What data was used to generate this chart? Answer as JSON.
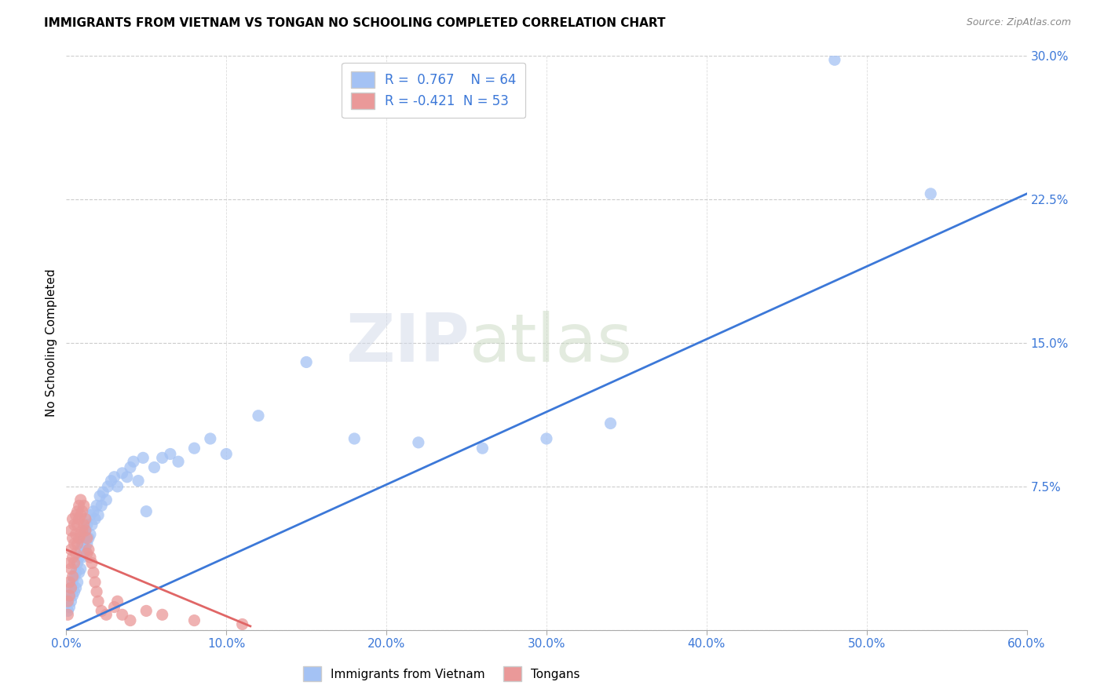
{
  "title": "IMMIGRANTS FROM VIETNAM VS TONGAN NO SCHOOLING COMPLETED CORRELATION CHART",
  "source": "Source: ZipAtlas.com",
  "ylabel": "No Schooling Completed",
  "xlim": [
    0.0,
    0.6
  ],
  "ylim": [
    0.0,
    0.3
  ],
  "xticks": [
    0.0,
    0.1,
    0.2,
    0.3,
    0.4,
    0.5,
    0.6
  ],
  "yticks": [
    0.0,
    0.075,
    0.15,
    0.225,
    0.3
  ],
  "xticklabels": [
    "0.0%",
    "10.0%",
    "20.0%",
    "30.0%",
    "40.0%",
    "50.0%",
    "60.0%"
  ],
  "yticklabels": [
    "",
    "7.5%",
    "15.0%",
    "22.5%",
    "30.0%"
  ],
  "blue_color": "#a4c2f4",
  "pink_color": "#ea9999",
  "blue_line_color": "#3c78d8",
  "pink_line_color": "#e06666",
  "legend_text_color": "#3c78d8",
  "R_blue": 0.767,
  "N_blue": 64,
  "R_pink": -0.421,
  "N_pink": 53,
  "watermark_zip": "ZIP",
  "watermark_atlas": "atlas",
  "blue_scatter": [
    [
      0.001,
      0.01
    ],
    [
      0.002,
      0.012
    ],
    [
      0.002,
      0.018
    ],
    [
      0.003,
      0.015
    ],
    [
      0.003,
      0.022
    ],
    [
      0.004,
      0.018
    ],
    [
      0.004,
      0.025
    ],
    [
      0.005,
      0.02
    ],
    [
      0.005,
      0.028
    ],
    [
      0.006,
      0.022
    ],
    [
      0.006,
      0.03
    ],
    [
      0.007,
      0.025
    ],
    [
      0.007,
      0.035
    ],
    [
      0.008,
      0.03
    ],
    [
      0.008,
      0.038
    ],
    [
      0.009,
      0.032
    ],
    [
      0.009,
      0.042
    ],
    [
      0.01,
      0.038
    ],
    [
      0.01,
      0.045
    ],
    [
      0.011,
      0.04
    ],
    [
      0.011,
      0.048
    ],
    [
      0.012,
      0.042
    ],
    [
      0.012,
      0.052
    ],
    [
      0.013,
      0.045
    ],
    [
      0.013,
      0.055
    ],
    [
      0.014,
      0.048
    ],
    [
      0.015,
      0.05
    ],
    [
      0.015,
      0.06
    ],
    [
      0.016,
      0.055
    ],
    [
      0.017,
      0.062
    ],
    [
      0.018,
      0.058
    ],
    [
      0.019,
      0.065
    ],
    [
      0.02,
      0.06
    ],
    [
      0.021,
      0.07
    ],
    [
      0.022,
      0.065
    ],
    [
      0.023,
      0.072
    ],
    [
      0.025,
      0.068
    ],
    [
      0.026,
      0.075
    ],
    [
      0.028,
      0.078
    ],
    [
      0.03,
      0.08
    ],
    [
      0.032,
      0.075
    ],
    [
      0.035,
      0.082
    ],
    [
      0.038,
      0.08
    ],
    [
      0.04,
      0.085
    ],
    [
      0.042,
      0.088
    ],
    [
      0.045,
      0.078
    ],
    [
      0.048,
      0.09
    ],
    [
      0.05,
      0.062
    ],
    [
      0.055,
      0.085
    ],
    [
      0.06,
      0.09
    ],
    [
      0.065,
      0.092
    ],
    [
      0.07,
      0.088
    ],
    [
      0.08,
      0.095
    ],
    [
      0.09,
      0.1
    ],
    [
      0.1,
      0.092
    ],
    [
      0.12,
      0.112
    ],
    [
      0.15,
      0.14
    ],
    [
      0.18,
      0.1
    ],
    [
      0.22,
      0.098
    ],
    [
      0.26,
      0.095
    ],
    [
      0.3,
      0.1
    ],
    [
      0.34,
      0.108
    ],
    [
      0.48,
      0.298
    ],
    [
      0.54,
      0.228
    ]
  ],
  "pink_scatter": [
    [
      0.001,
      0.008
    ],
    [
      0.001,
      0.015
    ],
    [
      0.002,
      0.018
    ],
    [
      0.002,
      0.025
    ],
    [
      0.002,
      0.035
    ],
    [
      0.003,
      0.022
    ],
    [
      0.003,
      0.032
    ],
    [
      0.003,
      0.042
    ],
    [
      0.003,
      0.052
    ],
    [
      0.004,
      0.028
    ],
    [
      0.004,
      0.038
    ],
    [
      0.004,
      0.048
    ],
    [
      0.004,
      0.058
    ],
    [
      0.005,
      0.035
    ],
    [
      0.005,
      0.045
    ],
    [
      0.005,
      0.055
    ],
    [
      0.006,
      0.04
    ],
    [
      0.006,
      0.05
    ],
    [
      0.006,
      0.06
    ],
    [
      0.007,
      0.045
    ],
    [
      0.007,
      0.055
    ],
    [
      0.007,
      0.062
    ],
    [
      0.008,
      0.048
    ],
    [
      0.008,
      0.058
    ],
    [
      0.008,
      0.065
    ],
    [
      0.009,
      0.05
    ],
    [
      0.009,
      0.06
    ],
    [
      0.009,
      0.068
    ],
    [
      0.01,
      0.052
    ],
    [
      0.01,
      0.062
    ],
    [
      0.011,
      0.055
    ],
    [
      0.011,
      0.065
    ],
    [
      0.012,
      0.058
    ],
    [
      0.012,
      0.052
    ],
    [
      0.013,
      0.048
    ],
    [
      0.013,
      0.04
    ],
    [
      0.014,
      0.042
    ],
    [
      0.015,
      0.038
    ],
    [
      0.016,
      0.035
    ],
    [
      0.017,
      0.03
    ],
    [
      0.018,
      0.025
    ],
    [
      0.019,
      0.02
    ],
    [
      0.02,
      0.015
    ],
    [
      0.022,
      0.01
    ],
    [
      0.025,
      0.008
    ],
    [
      0.03,
      0.012
    ],
    [
      0.032,
      0.015
    ],
    [
      0.035,
      0.008
    ],
    [
      0.04,
      0.005
    ],
    [
      0.05,
      0.01
    ],
    [
      0.06,
      0.008
    ],
    [
      0.08,
      0.005
    ],
    [
      0.11,
      0.003
    ]
  ],
  "blue_line_x": [
    0.0,
    0.6
  ],
  "blue_line_y": [
    0.0,
    0.228
  ],
  "pink_line_x": [
    0.0,
    0.115
  ],
  "pink_line_y": [
    0.042,
    0.002
  ]
}
